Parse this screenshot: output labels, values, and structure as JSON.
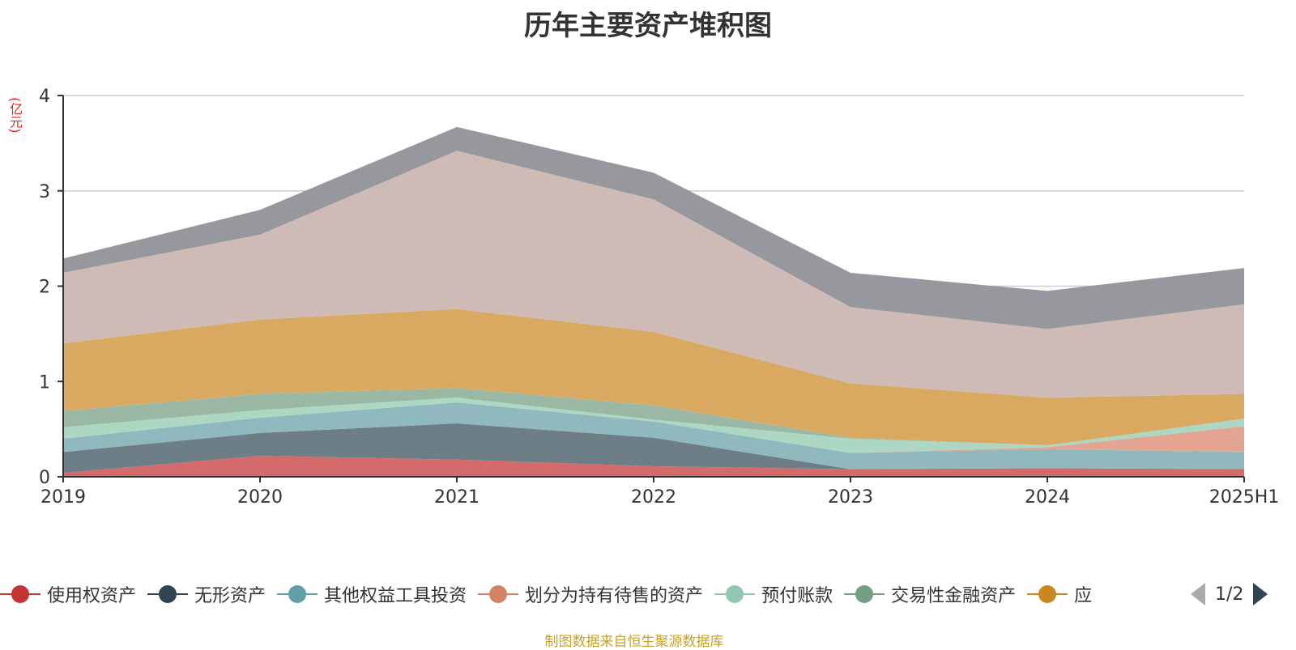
{
  "title": "历年主要资产堆积图",
  "unit_label": "(亿元)",
  "source": "制图数据来自恒生聚源数据库",
  "legend": {
    "items": [
      {
        "label": "使用权资产",
        "color": "#c23531"
      },
      {
        "label": "无形资产",
        "color": "#2f4554"
      },
      {
        "label": "其他权益工具投资",
        "color": "#61a0a8"
      },
      {
        "label": "划分为持有待售的资产",
        "color": "#d48265"
      },
      {
        "label": "预付账款",
        "color": "#91c7ae"
      },
      {
        "label": "交易性金融资产",
        "color": "#749f83"
      },
      {
        "label": "应",
        "color": "#ca8622"
      }
    ],
    "page_text": "1/2"
  },
  "chart_data": {
    "type": "area",
    "stacked": true,
    "categories": [
      "2019",
      "2020",
      "2021",
      "2022",
      "2023",
      "2024",
      "2025H1"
    ],
    "ylim": [
      0,
      4
    ],
    "yticks": [
      "0",
      "1",
      "2",
      "3",
      "4"
    ],
    "grid": true,
    "legend_position": "bottom",
    "series": [
      {
        "name": "使用权资产",
        "color": "#d46a6a",
        "values": [
          0.04,
          0.22,
          0.18,
          0.11,
          0.08,
          0.09,
          0.08
        ]
      },
      {
        "name": "无形资产",
        "color": "#6e7e87",
        "values": [
          0.22,
          0.24,
          0.38,
          0.3,
          0.0,
          0.0,
          0.0
        ]
      },
      {
        "name": "其他权益工具投资",
        "color": "#8fb9bf",
        "values": [
          0.14,
          0.16,
          0.22,
          0.17,
          0.17,
          0.2,
          0.18
        ]
      },
      {
        "name": "划分为持有待售的资产",
        "color": "#e3a591",
        "values": [
          0.0,
          0.0,
          0.0,
          0.0,
          0.0,
          0.02,
          0.27
        ]
      },
      {
        "name": "预付账款",
        "color": "#acd7c3",
        "values": [
          0.12,
          0.08,
          0.05,
          0.02,
          0.15,
          0.02,
          0.08
        ]
      },
      {
        "name": "交易性金融资产",
        "color": "#9bb8a4",
        "values": [
          0.17,
          0.17,
          0.1,
          0.15,
          0.01,
          0.0,
          0.0
        ]
      },
      {
        "name": "应",
        "color": "#d9a961",
        "values": [
          0.71,
          0.78,
          0.83,
          0.77,
          0.57,
          0.5,
          0.26
        ]
      },
      {
        "name": "",
        "color": "#cfbbb6",
        "values": [
          0.74,
          0.89,
          1.66,
          1.39,
          0.8,
          0.72,
          0.94
        ]
      },
      {
        "name": "",
        "color": "#97989d",
        "values": [
          0.15,
          0.26,
          0.25,
          0.28,
          0.36,
          0.4,
          0.38
        ]
      }
    ]
  }
}
